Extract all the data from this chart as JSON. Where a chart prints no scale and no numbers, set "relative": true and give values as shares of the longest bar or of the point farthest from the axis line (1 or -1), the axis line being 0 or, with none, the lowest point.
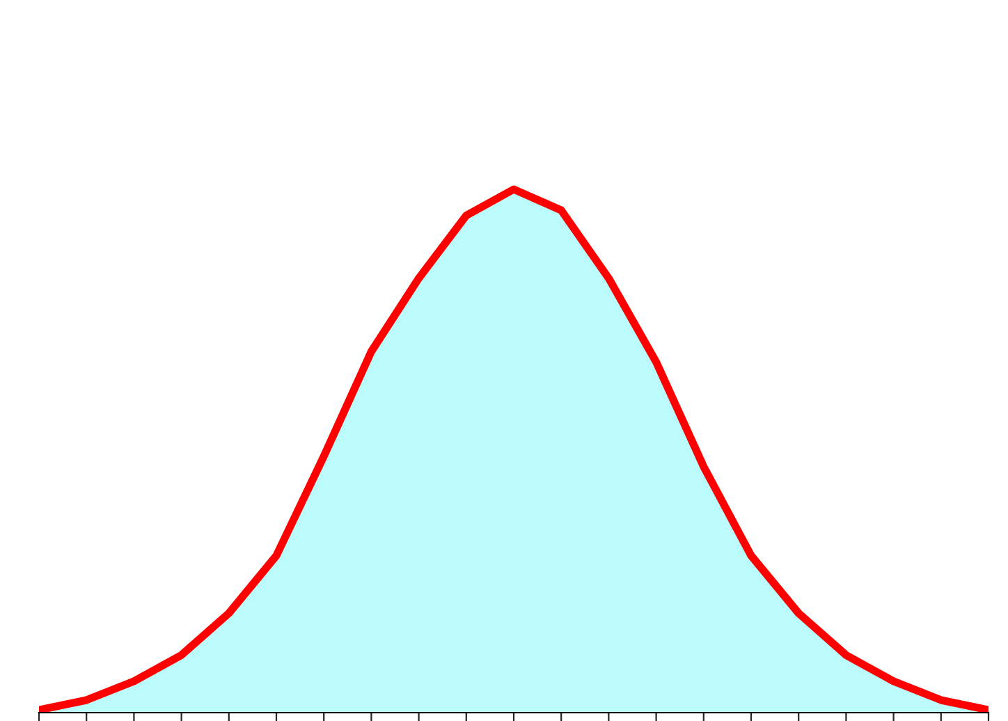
{
  "chart_data": {
    "type": "area",
    "relative": true,
    "marker": "none",
    "line_style": "solid",
    "categories": [
      null,
      null,
      null,
      null,
      null,
      null,
      null,
      null,
      null,
      null,
      null,
      null,
      null,
      null,
      null,
      null,
      null,
      null,
      null,
      null,
      null
    ],
    "series": [
      {
        "color": "#bbfbfb",
        "values": [
          0.005,
          0.024,
          0.06,
          0.11,
          0.19,
          0.3,
          0.49,
          0.69,
          0.83,
          0.95,
          1.0,
          0.96,
          0.83,
          0.67,
          0.47,
          0.3,
          0.19,
          0.11,
          0.06,
          0.024,
          0.005
        ]
      },
      {
        "type": "line",
        "color": "#ff0000",
        "values": [
          0.005,
          0.024,
          0.06,
          0.11,
          0.19,
          0.3,
          0.49,
          0.69,
          0.83,
          0.95,
          1.0,
          0.96,
          0.83,
          0.67,
          0.47,
          0.3,
          0.19,
          0.11,
          0.06,
          0.024,
          0.005
        ]
      }
    ]
  }
}
